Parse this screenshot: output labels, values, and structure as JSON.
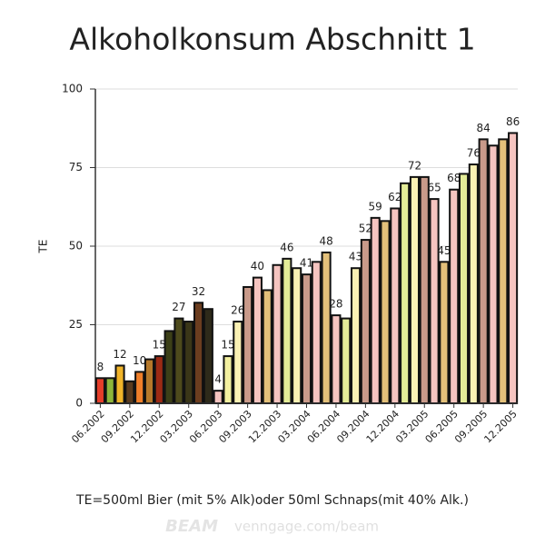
{
  "chart_data": {
    "type": "bar",
    "title": "Alkoholkonsum Abschnitt 1",
    "y_label": "TE",
    "footnote": "TE=500ml Bier (mit 5% Alk)oder 50ml Schnaps(mit 40% Alk.)",
    "watermark": "BEAM",
    "watermark_url": "venngage.com/beam",
    "categories": [
      "06.2002",
      null,
      null,
      "09.2002",
      null,
      null,
      "12.2002",
      null,
      null,
      "03.2003",
      null,
      null,
      "06.2003",
      null,
      null,
      "09.2003",
      null,
      null,
      "12.2003",
      null,
      null,
      "03.2004",
      null,
      null,
      "06.2004",
      null,
      null,
      "09.2004",
      null,
      null,
      "12.2004",
      null,
      null,
      "03.2005",
      null,
      null,
      "06.2005",
      null,
      null,
      "09.2005",
      null,
      null,
      "12.2005"
    ],
    "values": [
      8,
      8,
      12,
      7,
      10,
      14,
      15,
      23,
      27,
      26,
      32,
      30,
      4,
      15,
      26,
      37,
      40,
      36,
      44,
      46,
      43,
      41,
      45,
      48,
      28,
      27,
      43,
      52,
      59,
      58,
      62,
      70,
      72,
      72,
      65,
      45,
      68,
      73,
      76,
      84,
      82,
      84,
      86
    ],
    "value_labels": [
      "8",
      null,
      "12",
      null,
      "10",
      null,
      "15",
      null,
      "27",
      null,
      "32",
      null,
      "4",
      "15",
      "26",
      null,
      "40",
      null,
      null,
      "46",
      null,
      "41",
      null,
      "48",
      "28",
      null,
      "43",
      "52",
      "59",
      null,
      "62",
      null,
      "72",
      null,
      "65",
      "45",
      "68",
      null,
      "76",
      "84",
      null,
      null,
      "86"
    ],
    "colors": [
      "#e53e2a",
      "#8db53a",
      "#f0b429",
      "#5a3b1e",
      "#f07f2a",
      "#b5782a",
      "#9b2a14",
      "#3b3f17",
      "#4d4a1c",
      "#3a3618",
      "#6b3d1f",
      "#2e2a1a",
      "#f5c4c0",
      "#f3f0a0",
      "#faf1b4",
      "#c99a8a",
      "#f5c4c0",
      "#e3c07a",
      "#f5c4c0",
      "#e4ec98",
      "#faf1b4",
      "#c99a8a",
      "#f5c4c0",
      "#e3c07a",
      "#f5c4c0",
      "#e4ec98",
      "#faf1b4",
      "#c99a8a",
      "#f5c4c0",
      "#e3c07a",
      "#f5c4c0",
      "#e4ec98",
      "#faf1b4",
      "#c99a8a",
      "#f5c4c0",
      "#e3c07a",
      "#f5c4c0",
      "#e4ec98",
      "#faf1b4",
      "#c99a8a",
      "#f5c4c0",
      "#e3c07a",
      "#f5c4c0"
    ],
    "ylim": [
      0,
      100
    ],
    "yticks": [
      0,
      25,
      50,
      75,
      100
    ],
    "grid": true
  }
}
